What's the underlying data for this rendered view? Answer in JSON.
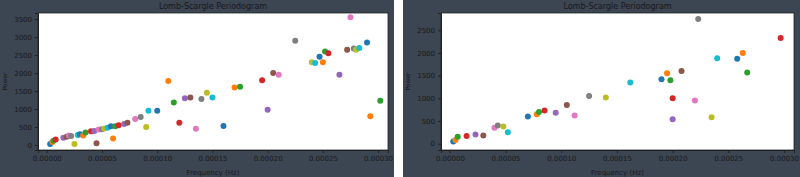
{
  "chart_data": [
    {
      "type": "scatter",
      "title": "Lomb-Scargle Periodogram",
      "x_label": "Frequency (Hz)",
      "y_label": "Power",
      "x": [
        3e-06,
        5e-06,
        6e-06,
        8e-06,
        1.5e-05,
        1.8e-05,
        2e-05,
        2.2e-05,
        2.5e-05,
        2.8e-05,
        3e-05,
        3.3e-05,
        3.5e-05,
        4e-05,
        4.3e-05,
        4.5e-05,
        4.7e-05,
        5e-05,
        5.2e-05,
        5.5e-05,
        5.8e-05,
        6e-05,
        6.2e-05,
        6.5e-05,
        7e-05,
        7.3e-05,
        8e-05,
        8.5e-05,
        9e-05,
        9.2e-05,
        0.0001,
        0.00011,
        0.000115,
        0.00012,
        0.000125,
        0.00013,
        0.000135,
        0.00014,
        0.000145,
        0.00015,
        0.00016,
        0.00017,
        0.000175,
        0.000195,
        0.0002,
        0.000205,
        0.00021,
        0.000225,
        0.00024,
        0.000243,
        0.000247,
        0.00025,
        0.000252,
        0.000255,
        0.000265,
        0.000272,
        0.000275,
        0.000278,
        0.00028,
        0.000283,
        0.00029,
        0.000293,
        0.000302
      ],
      "values": [
        30,
        80,
        120,
        150,
        200,
        230,
        260,
        250,
        30,
        280,
        300,
        260,
        350,
        380,
        390,
        50,
        430,
        440,
        460,
        480,
        520,
        180,
        520,
        550,
        580,
        620,
        720,
        780,
        500,
        950,
        950,
        1780,
        1180,
        620,
        1300,
        1320,
        450,
        1280,
        1450,
        1320,
        530,
        1600,
        1620,
        1800,
        980,
        2000,
        1950,
        2900,
        2300,
        2280,
        2450,
        2300,
        2600,
        2550,
        1950,
        2650,
        3550,
        2680,
        2650,
        2700,
        2850,
        800,
        1230
      ],
      "colors": [
        "#1f77b4",
        "#ff7f0e",
        "#2ca02c",
        "#d62728",
        "#9467bd",
        "#8c564b",
        "#e377c2",
        "#7f7f7f",
        "#bcbd22",
        "#17becf",
        "#1f77b4",
        "#ff7f0e",
        "#2ca02c",
        "#d62728",
        "#9467bd",
        "#8c564b",
        "#e377c2",
        "#7f7f7f",
        "#bcbd22",
        "#17becf",
        "#1f77b4",
        "#ff7f0e",
        "#2ca02c",
        "#d62728",
        "#9467bd",
        "#8c564b",
        "#e377c2",
        "#7f7f7f",
        "#bcbd22",
        "#17becf",
        "#1f77b4",
        "#ff7f0e",
        "#2ca02c",
        "#d62728",
        "#9467bd",
        "#8c564b",
        "#e377c2",
        "#7f7f7f",
        "#bcbd22",
        "#17becf",
        "#1f77b4",
        "#ff7f0e",
        "#2ca02c",
        "#d62728",
        "#9467bd",
        "#8c564b",
        "#e377c2",
        "#7f7f7f",
        "#bcbd22",
        "#17becf",
        "#1f77b4",
        "#ff7f0e",
        "#2ca02c",
        "#d62728",
        "#9467bd",
        "#8c564b",
        "#e377c2",
        "#7f7f7f",
        "#bcbd22",
        "#17becf",
        "#1f77b4",
        "#ff7f0e",
        "#2ca02c"
      ],
      "xlim": [
        -8e-06,
        0.000309
      ],
      "ylim": [
        -140,
        3670
      ],
      "xticks": [
        {
          "value": 0,
          "label": "0.00000"
        },
        {
          "value": 5e-05,
          "label": "0.00005"
        },
        {
          "value": 0.0001,
          "label": "0.00010"
        },
        {
          "value": 0.00015,
          "label": "0.00015"
        },
        {
          "value": 0.0002,
          "label": "0.00020"
        },
        {
          "value": 0.00025,
          "label": "0.00025"
        },
        {
          "value": 0.0003,
          "label": "0.00030"
        }
      ],
      "yticks": [
        0,
        500,
        1000,
        1500,
        2000,
        2500,
        3000,
        3500
      ]
    },
    {
      "type": "scatter",
      "title": "Lomb-Scargle Periodogram",
      "x_label": "Frequency (Hz)",
      "y_label": "Power",
      "x": [
        3e-06,
        5e-06,
        7e-06,
        1.5e-05,
        2.3e-05,
        3e-05,
        4e-05,
        4.3e-05,
        4.8e-05,
        5.2e-05,
        7e-05,
        7.8e-05,
        8e-05,
        8.5e-05,
        9.5e-05,
        0.000105,
        0.000112,
        0.000125,
        0.00014,
        0.000162,
        0.00019,
        0.000195,
        0.000198,
        0.0002,
        0.0002,
        0.000208,
        0.00022,
        0.000223,
        0.000235,
        0.00024,
        0.000258,
        0.000263,
        0.000267,
        0.000297
      ],
      "values": [
        50,
        80,
        150,
        170,
        200,
        180,
        350,
        400,
        380,
        250,
        600,
        650,
        700,
        730,
        680,
        850,
        620,
        1050,
        1020,
        1350,
        1420,
        1550,
        1400,
        1000,
        540,
        1600,
        950,
        2750,
        580,
        1880,
        1870,
        2000,
        1570,
        2330
      ],
      "colors": [
        "#1f77b4",
        "#ff7f0e",
        "#2ca02c",
        "#d62728",
        "#9467bd",
        "#8c564b",
        "#e377c2",
        "#7f7f7f",
        "#bcbd22",
        "#17becf",
        "#1f77b4",
        "#ff7f0e",
        "#2ca02c",
        "#d62728",
        "#9467bd",
        "#8c564b",
        "#e377c2",
        "#7f7f7f",
        "#bcbd22",
        "#17becf",
        "#1f77b4",
        "#ff7f0e",
        "#2ca02c",
        "#d62728",
        "#9467bd",
        "#8c564b",
        "#e377c2",
        "#7f7f7f",
        "#bcbd22",
        "#17becf",
        "#1f77b4",
        "#ff7f0e",
        "#2ca02c",
        "#d62728"
      ],
      "xlim": [
        -8e-06,
        0.000309
      ],
      "ylim": [
        -140,
        2880
      ],
      "xticks": [
        {
          "value": 0,
          "label": "0.00000"
        },
        {
          "value": 5e-05,
          "label": "0.00005"
        },
        {
          "value": 0.0001,
          "label": "0.00010"
        },
        {
          "value": 0.00015,
          "label": "0.00015"
        },
        {
          "value": 0.0002,
          "label": "0.00020"
        },
        {
          "value": 0.00025,
          "label": "0.00025"
        },
        {
          "value": 0.0003,
          "label": "0.00030"
        }
      ],
      "yticks": [
        0,
        500,
        1000,
        1500,
        2000,
        2500
      ]
    }
  ]
}
